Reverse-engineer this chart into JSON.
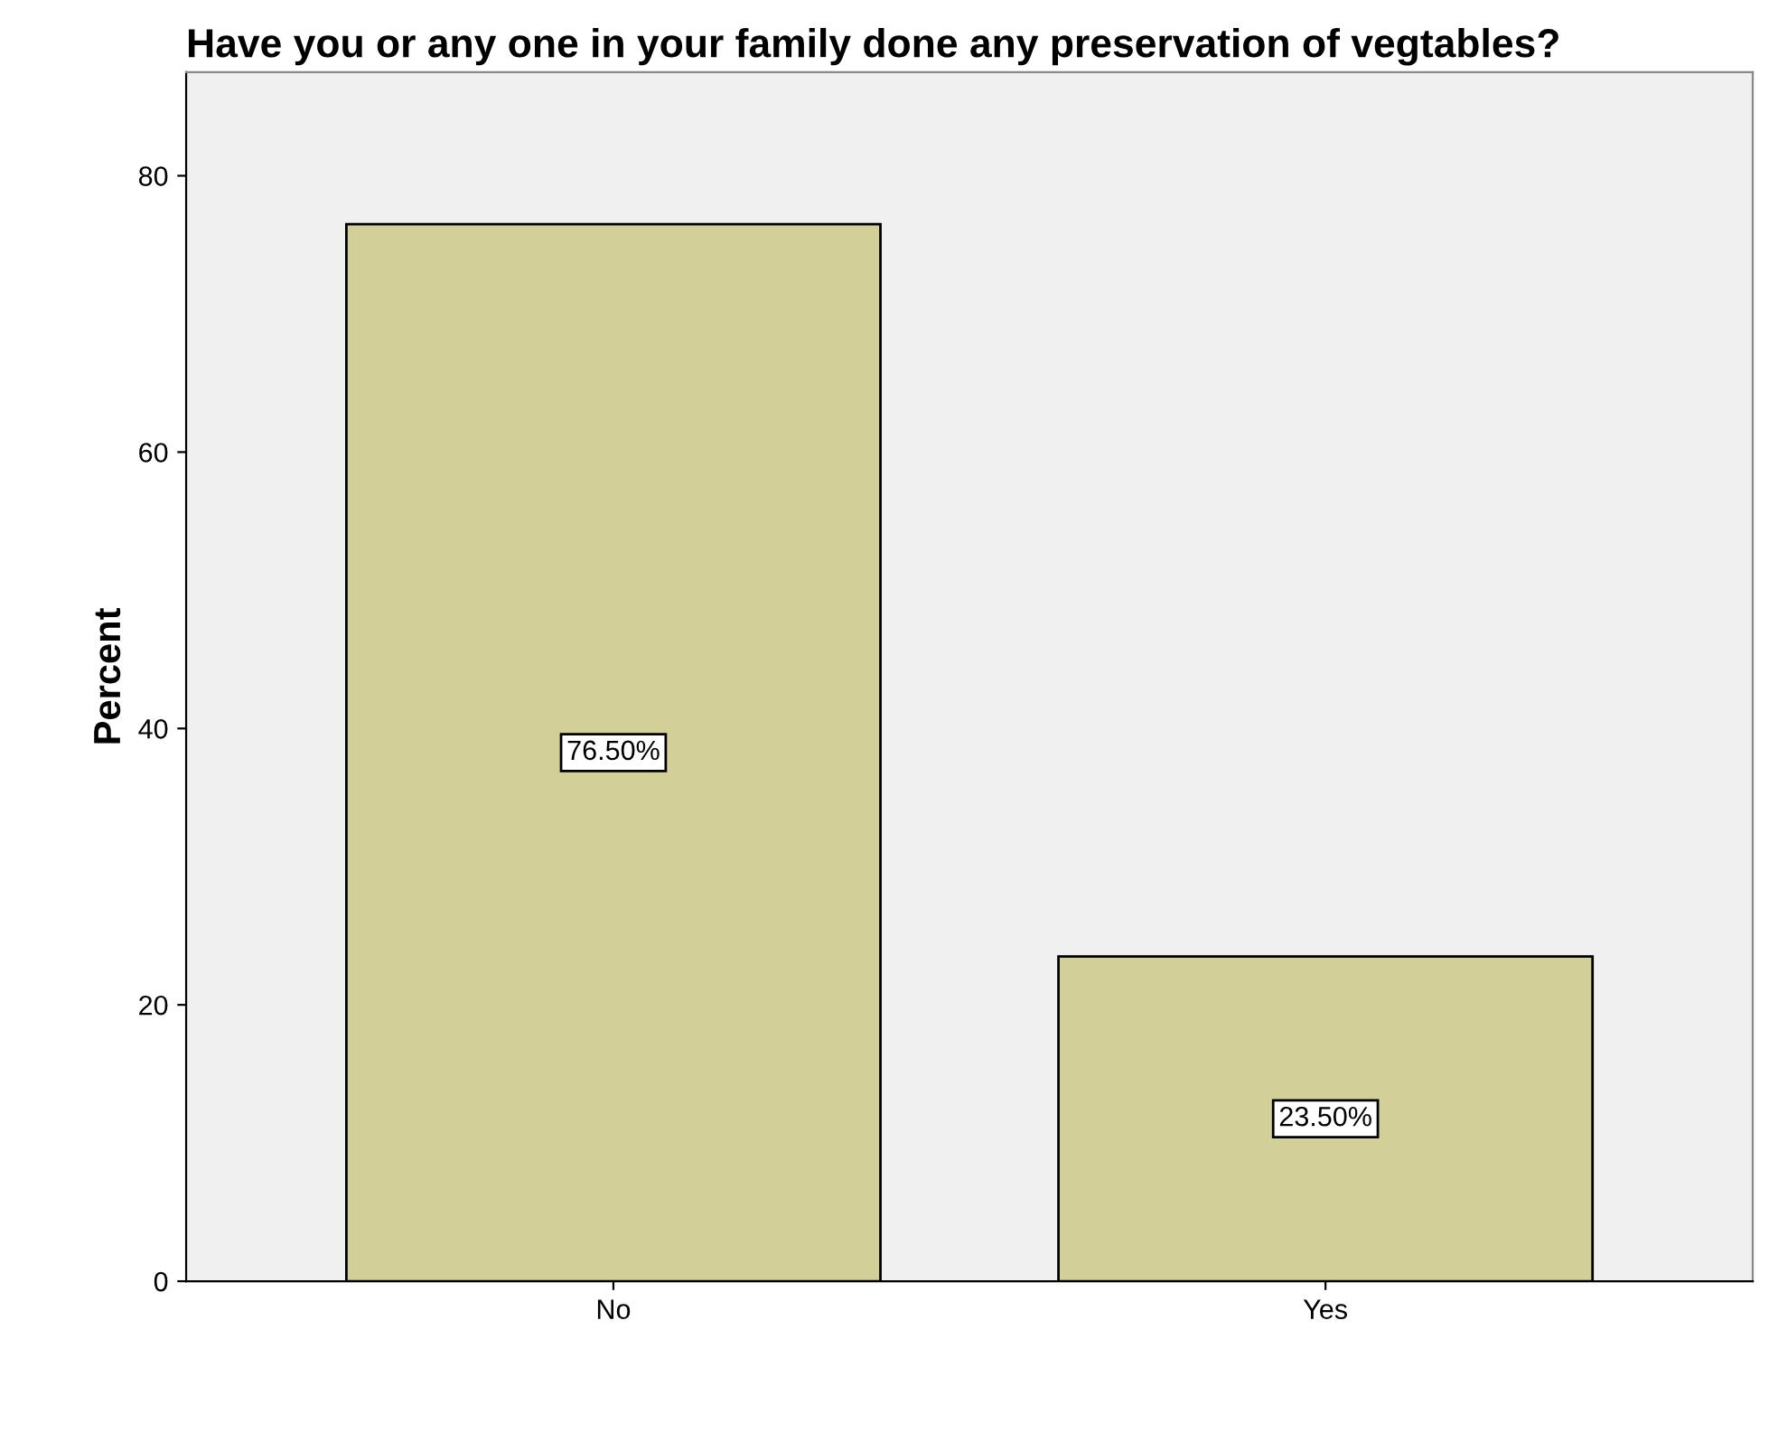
{
  "chart_data": {
    "type": "bar",
    "title": "Have you or any one in your family done any preservation of vegtables?",
    "ylabel": "Percent",
    "categories": [
      "No",
      "Yes"
    ],
    "values": [
      76.5,
      23.5
    ],
    "color": "#d3cf98",
    "value_labels": [
      "76.50%",
      "23.50%"
    ],
    "ylim": [
      0,
      87.5
    ],
    "yticks": [
      0,
      20,
      40,
      60,
      80
    ],
    "grid": false,
    "legend": false
  }
}
